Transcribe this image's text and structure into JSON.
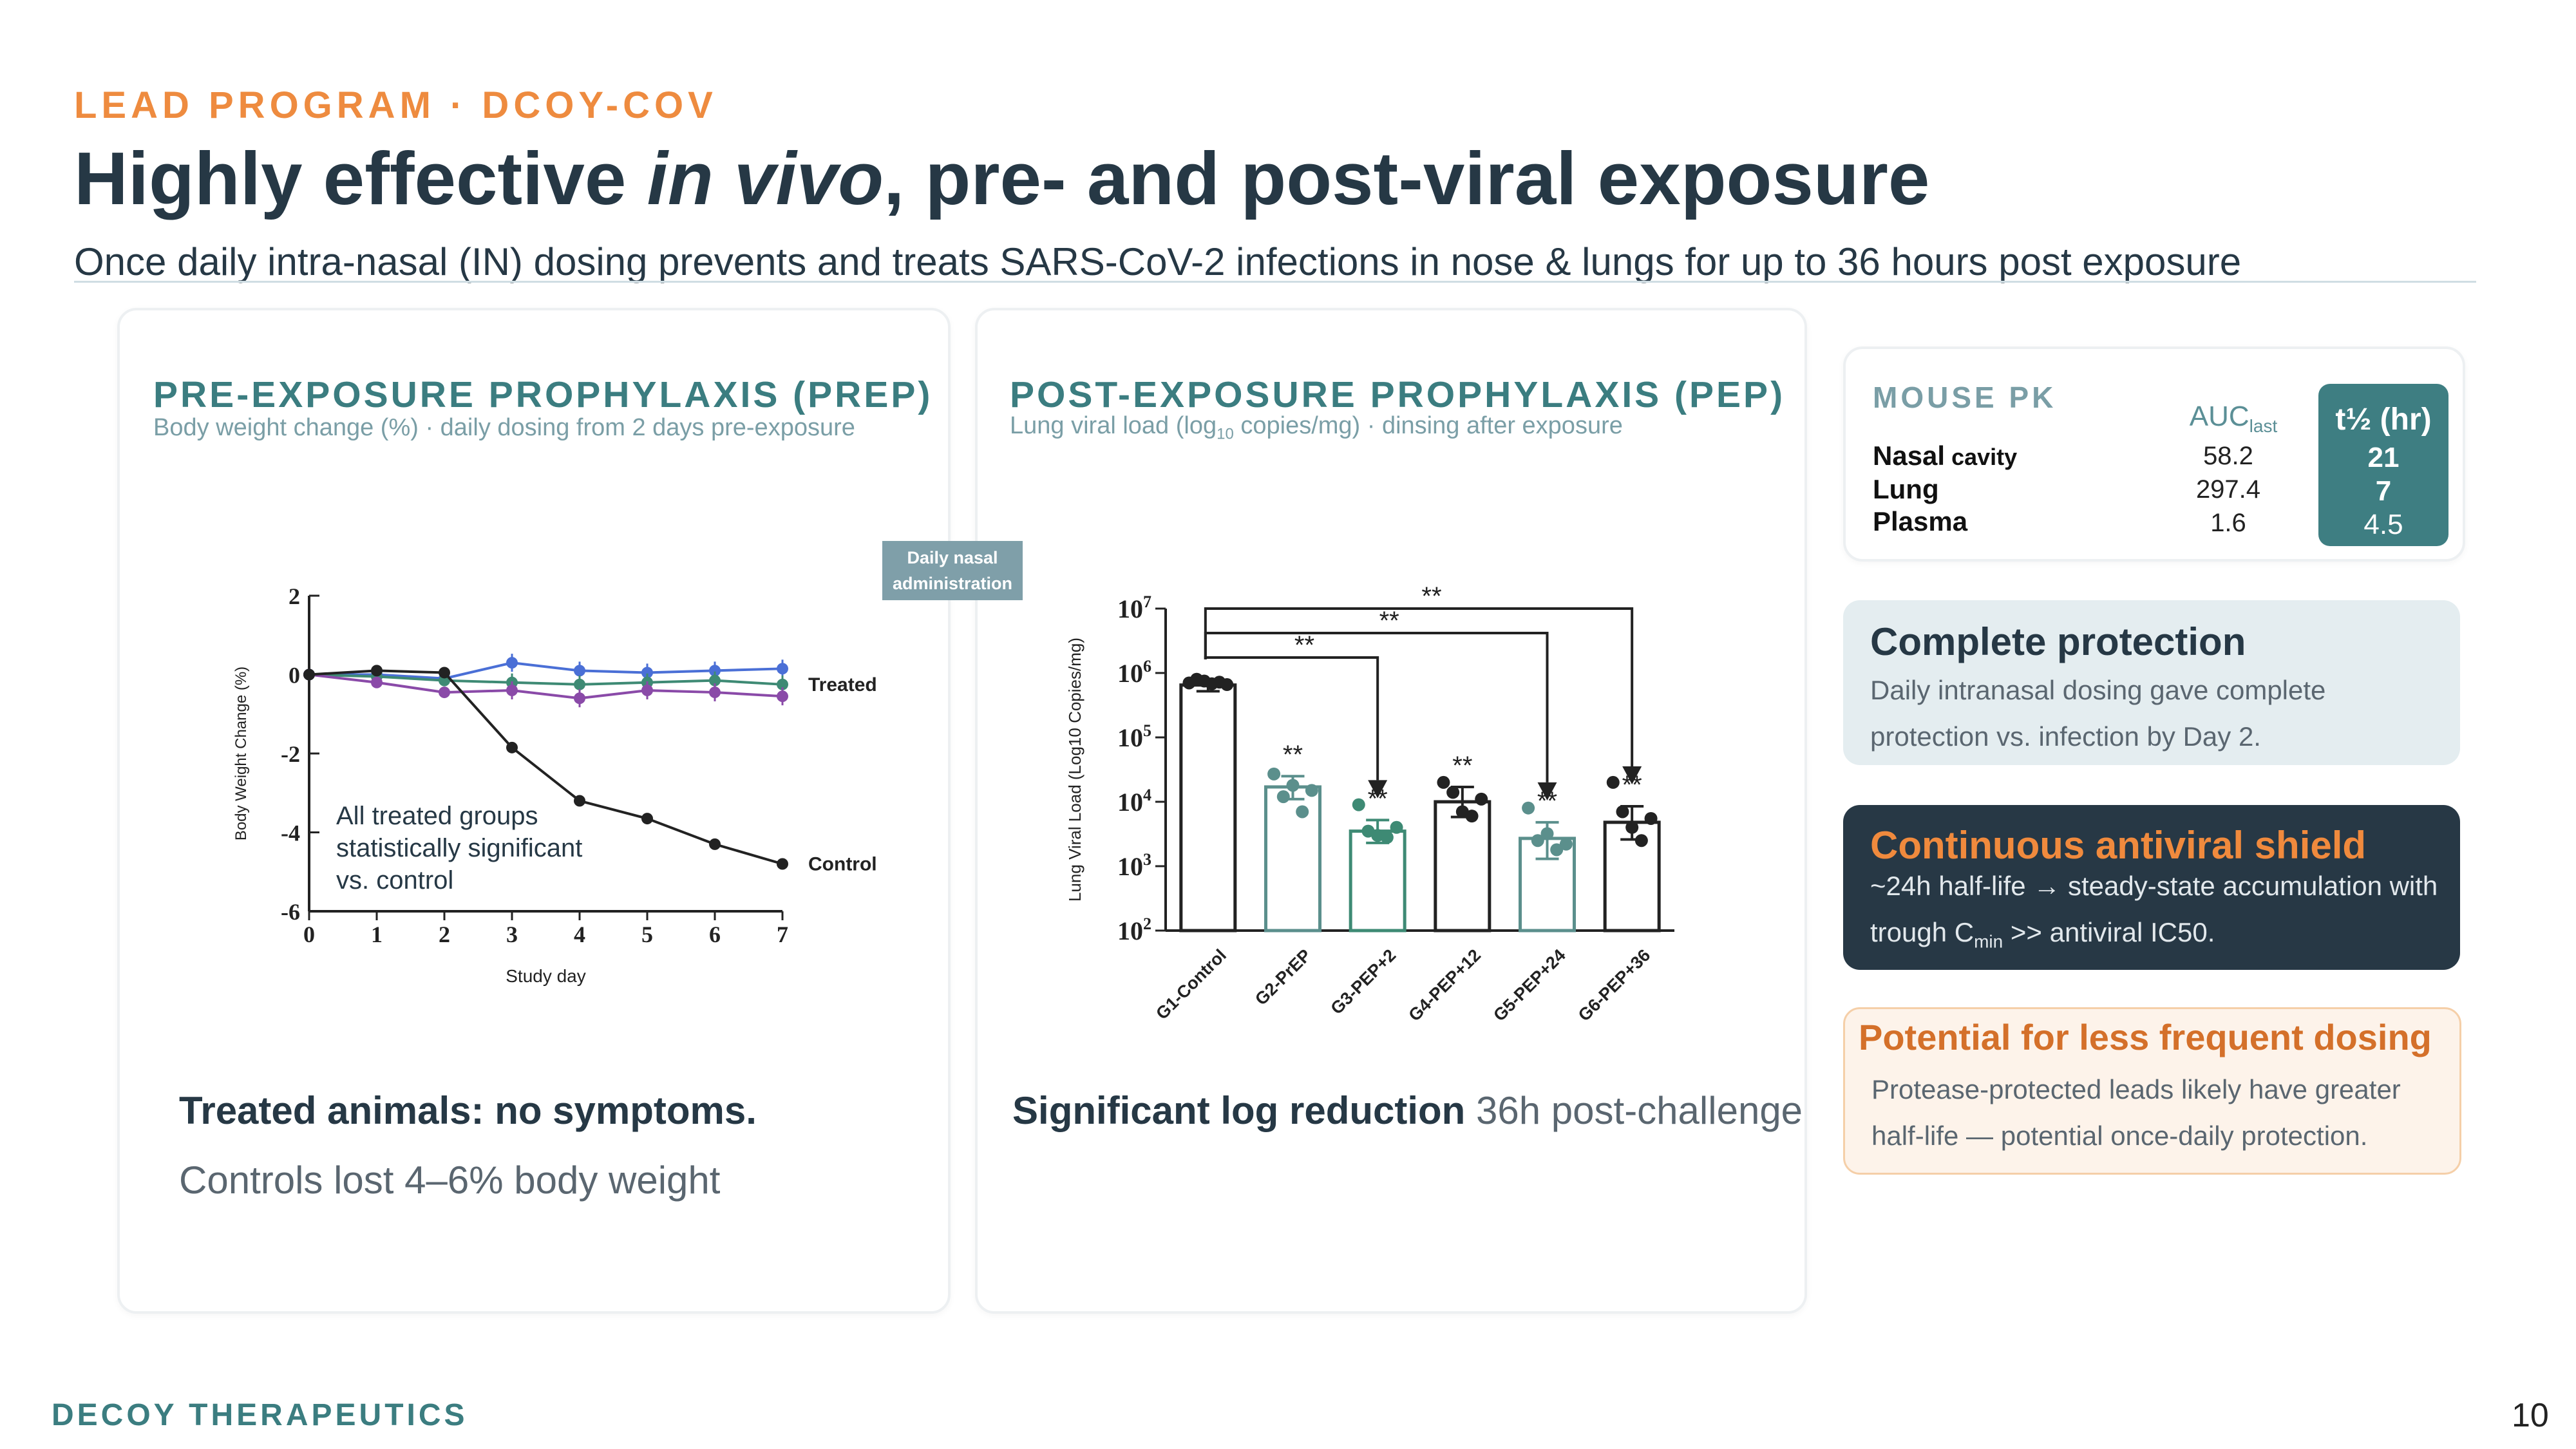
{
  "header": {
    "eyebrow": "LEAD PROGRAM · DCOY-COV",
    "title_part1": "Highly effective ",
    "title_italic": "in vivo",
    "title_part2": ", pre- and post-viral exposure",
    "subtitle": "Once daily intra-nasal (IN) dosing prevents and treats SARS-CoV-2 infections in nose & lungs for up to 36 hours post exposure"
  },
  "prep_panel": {
    "heading": "PRE-EXPOSURE PROPHYLAXIS (PREP)",
    "subheading": "Body weight change (%) · daily dosing from 2 days pre-exposure",
    "caption_bold": "Treated animals: no symptoms.",
    "caption_text": "Controls lost 4–6% body weight"
  },
  "pep_panel": {
    "heading": "POST-EXPOSURE PROPHYLAXIS (PEP)",
    "subheading_a": "Lung viral load (log",
    "subheading_sub": "10",
    "subheading_b": " copies/mg) · dinsing after exposure",
    "caption_bold": "Significant log reduction",
    "caption_text": " 36h post-challenge"
  },
  "daily_nasal_tag": {
    "line1": "Daily nasal",
    "line2": "administration"
  },
  "chart_data": [
    {
      "type": "line",
      "title": "",
      "xlabel": "Study day",
      "ylabel": "Body Weight Change (%)",
      "x": [
        0,
        1,
        2,
        3,
        4,
        5,
        6,
        7
      ],
      "xlim": [
        0,
        7
      ],
      "ylim": [
        -6,
        2
      ],
      "yticks": [
        2,
        0,
        -2,
        -4,
        -6
      ],
      "series": [
        {
          "name": "Control",
          "color": "#222222",
          "values": [
            0,
            0.1,
            0.05,
            -1.85,
            -3.2,
            -3.65,
            -4.3,
            -4.8
          ]
        },
        {
          "name": "",
          "color": "#4a6fd6",
          "values": [
            0,
            0,
            -0.1,
            0.3,
            0.1,
            0.05,
            0.1,
            0.15
          ]
        },
        {
          "name": "",
          "color": "#3e8a74",
          "values": [
            0,
            -0.05,
            -0.15,
            -0.2,
            -0.25,
            -0.2,
            -0.15,
            -0.25
          ]
        },
        {
          "name": "",
          "color": "#8a4aa8",
          "values": [
            0,
            -0.2,
            -0.45,
            -0.4,
            -0.6,
            -0.4,
            -0.45,
            -0.55
          ]
        }
      ],
      "series_labels": {
        "treated": "Treated",
        "control": "Control"
      },
      "annotation": [
        "All treated groups",
        "statistically significant",
        "vs. control"
      ]
    },
    {
      "type": "bar",
      "title": "",
      "ylabel": "Lung Viral Load (Log10 Copies/mg)",
      "yscale": "log",
      "ylim": [
        100,
        10000000
      ],
      "categories": [
        "G1-Control",
        "G2-PrEP",
        "G3-PEP+2",
        "G4-PEP+12",
        "G5-PEP+24",
        "G6-PEP+36"
      ],
      "values": [
        650000,
        17000,
        3500,
        10000,
        2700,
        4800
      ],
      "error": [
        [
          520000,
          780000
        ],
        [
          11000,
          25000
        ],
        [
          2300,
          5200
        ],
        [
          5800,
          17000
        ],
        [
          1300,
          4800
        ],
        [
          2600,
          8500
        ]
      ],
      "points": [
        [
          700000,
          800000,
          750000,
          680000,
          720000,
          660000
        ],
        [
          27000,
          12000,
          18000,
          7000,
          15000
        ],
        [
          9000,
          3500,
          3000,
          2800,
          4000
        ],
        [
          20000,
          14000,
          7000,
          6000,
          11000
        ],
        [
          8000,
          2500,
          3200,
          1800,
          2200
        ],
        [
          20000,
          7000,
          4000,
          2500,
          5500
        ]
      ],
      "bar_colors": [
        "#222222",
        "#5b8f8c",
        "#3e8a74",
        "#222222",
        "#5b8f8c",
        "#222222"
      ],
      "significance": "**",
      "bracket_targets": [
        "G3-PEP+2",
        "G5-PEP+24",
        "G6-PEP+36"
      ]
    }
  ],
  "pk_card": {
    "label": "MOUSE PK",
    "col1": "AUC",
    "col1_sub": "last",
    "col2": "t½ (hr)",
    "rows": [
      {
        "name": "Nasal",
        "name_small": " cavity",
        "auc": "58.2",
        "thalf": "21"
      },
      {
        "name": "Lung",
        "name_small": "",
        "auc": "297.4",
        "thalf": "7"
      },
      {
        "name": "Plasma",
        "name_small": "",
        "auc": "1.6",
        "thalf": "4.5"
      }
    ]
  },
  "callouts": {
    "complete": {
      "title": "Complete protection",
      "text": "Daily intranasal dosing gave complete protection vs. infection by Day 2."
    },
    "shield": {
      "title": "Continuous antiviral shield",
      "text_a": "~24h half-life → steady-state accumulation with trough C",
      "text_sub": "min",
      "text_b": " >> antiviral IC50."
    },
    "frequent": {
      "title": "Potential for less frequent dosing",
      "text": "Protease-protected leads likely have greater half-life — potential once-daily protection."
    }
  },
  "colors": {
    "accent_orange": "#ee8b3f",
    "teal": "#3b7d80",
    "navy": "#263845"
  },
  "footer": {
    "company": "DECOY THERAPEUTICS",
    "page": "10"
  }
}
